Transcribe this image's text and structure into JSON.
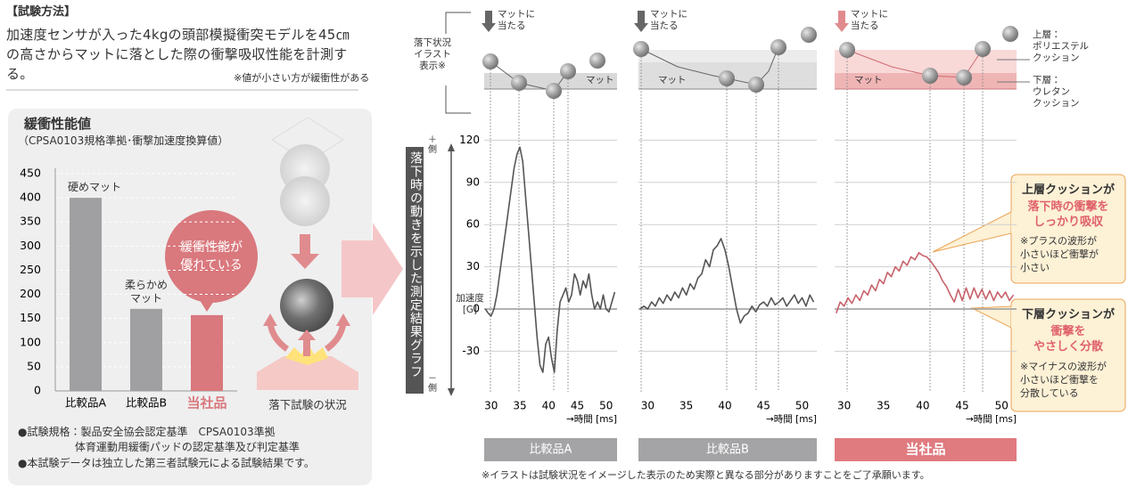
{
  "method": {
    "title": "【試験方法】",
    "text": "加速度センサが入った4kgの頭部模擬衝突モデルを45㎝の高さからマットに落とした際の衝撃吸収性能を計測する。",
    "note": "※値が小さい方が緩衝性がある"
  },
  "panel": {
    "title": "緩衝性能値",
    "subtitle": "（CPSA0103規格準拠･衝撃加速度換算値）",
    "bubble": "緩衝性能が\n優れている",
    "illustration_caption": "落下試験の状況",
    "notes": [
      "●試験規格：製品安全協会認定基準　CPSA0103準拠\n　　　　　 体育運動用緩衝パッドの認定基準及び判定基準",
      "●本試験データは独立した第三者試験元による試験結果です。"
    ]
  },
  "graph_side_label": "落下時の動きを示した測定結果グラフ",
  "plus_label": "＋\n側",
  "minus_label": "－\n側",
  "illustration": {
    "label": "落下状況\nイラスト\n表示※",
    "hit_labels": [
      "マットに\n当たる",
      "マットに\n当たる",
      "マットに\n当たる"
    ],
    "mat_labels": [
      "マット",
      "マット",
      "マット"
    ],
    "upper": "上層：\nポリエステル\nクッション",
    "lower": "下層：\nウレタン\nクッション"
  },
  "y_axis_label": "加速度\n[G]",
  "x_axis_label": "→時間 [ms]",
  "callouts": [
    {
      "head": "上層クッションが",
      "emphasis": "落下時の衝撃を\nしっかり吸収",
      "note": "※プラスの波形が\n小さいほど衝撃が\n小さい"
    },
    {
      "head": "下層クッションが",
      "emphasis": "衝撃を\nやさしく分散",
      "note": "※マイナスの波形が\n小さいほど衝撃を\n分散している"
    }
  ],
  "footnote": "※イラストは試験状況をイメージした表示のため実際と異なる部分がありますことをご了承願います。",
  "chart_data": [
    {
      "type": "bar",
      "categories": [
        "比較品A",
        "比較品B",
        "当社品"
      ],
      "values": [
        400,
        170,
        157
      ],
      "colors": [
        "#a09fa2",
        "#a09fa2",
        "#d9787d"
      ],
      "bar_labels": [
        "硬めマット",
        "柔らかめ\nマット",
        null
      ],
      "ylim": [
        0,
        450
      ],
      "yticks": [
        0,
        50,
        100,
        150,
        200,
        250,
        300,
        350,
        400,
        450
      ],
      "grid": true
    },
    {
      "type": "line",
      "label": "比較品A",
      "color": "#555555",
      "label_color": "#a4a4a6",
      "x": [
        29,
        29.5,
        30,
        30.5,
        31,
        31.5,
        32,
        32.5,
        33,
        33.5,
        34,
        34.5,
        35,
        35.5,
        36,
        36.5,
        37,
        37.5,
        38,
        38.5,
        39,
        39.5,
        40,
        40.5,
        41,
        41.5,
        42,
        42.5,
        43,
        43.5,
        44,
        44.5,
        45,
        45.5,
        46,
        46.5,
        47,
        47.5,
        48,
        48.5,
        49,
        49.5,
        50,
        50.5,
        51,
        51.5
      ],
      "values": [
        0,
        -3,
        -5,
        0,
        10,
        25,
        40,
        55,
        70,
        85,
        100,
        110,
        115,
        105,
        80,
        55,
        30,
        5,
        -20,
        -40,
        -45,
        -25,
        -20,
        -35,
        -45,
        -15,
        5,
        10,
        15,
        5,
        10,
        25,
        20,
        10,
        20,
        15,
        25,
        10,
        0,
        5,
        0,
        10,
        0,
        -2,
        5,
        12
      ],
      "xlim": [
        28.8,
        51.9
      ],
      "xticks": [
        30,
        35,
        40,
        45,
        50
      ],
      "ylim": [
        -60,
        130
      ],
      "yticks": [
        -30,
        0,
        30,
        60,
        90,
        120
      ],
      "grid": true
    },
    {
      "type": "line",
      "label": "比較品B",
      "color": "#555555",
      "label_color": "#a4a4a6",
      "x": [
        29,
        29.5,
        30,
        30.5,
        31,
        31.5,
        32,
        32.5,
        33,
        33.5,
        34,
        34.5,
        35,
        35.5,
        36,
        36.5,
        37,
        37.5,
        38,
        38.5,
        39,
        39.5,
        40,
        40.5,
        41,
        41.5,
        42,
        42.5,
        43,
        43.5,
        44,
        44.5,
        45,
        45.5,
        46,
        46.5,
        47,
        47.5,
        48,
        48.5,
        49,
        49.5,
        50,
        50.5,
        51,
        51.5
      ],
      "values": [
        0,
        2,
        0,
        5,
        2,
        8,
        4,
        10,
        6,
        12,
        8,
        15,
        10,
        18,
        14,
        22,
        25,
        35,
        30,
        42,
        45,
        50,
        42,
        30,
        15,
        0,
        -10,
        -5,
        -3,
        2,
        -2,
        3,
        5,
        2,
        8,
        3,
        5,
        8,
        2,
        6,
        10,
        4,
        8,
        2,
        10,
        5
      ],
      "xlim": [
        28.8,
        51.9
      ],
      "xticks": [
        30,
        35,
        40,
        45,
        50
      ],
      "ylim": [
        -60,
        130
      ],
      "yticks": [
        -30,
        0,
        30,
        60,
        90,
        120
      ],
      "grid": true
    },
    {
      "type": "line",
      "label": "当社品",
      "color": "#c8626b",
      "label_color": "#e07b80",
      "x": [
        29,
        29.5,
        30,
        30.5,
        31,
        31.5,
        32,
        32.5,
        33,
        33.5,
        34,
        34.5,
        35,
        35.5,
        36,
        36.5,
        37,
        37.5,
        38,
        38.5,
        39,
        39.5,
        40,
        40.5,
        41,
        41.5,
        42,
        42.5,
        43,
        43.5,
        44,
        44.5,
        45,
        45.5,
        46,
        46.5,
        47,
        47.5,
        48,
        48.5,
        49,
        49.5,
        50,
        50.5,
        51,
        51.5
      ],
      "values": [
        -3,
        5,
        2,
        8,
        4,
        10,
        6,
        13,
        10,
        17,
        13,
        21,
        18,
        26,
        23,
        30,
        27,
        34,
        31,
        37,
        35,
        40,
        38,
        37,
        34,
        30,
        26,
        20,
        16,
        10,
        5,
        14,
        6,
        15,
        7,
        15,
        8,
        14,
        7,
        13,
        6,
        12,
        8,
        12,
        6,
        10
      ],
      "xlim": [
        28.8,
        51.9
      ],
      "xticks": [
        30,
        35,
        40,
        45,
        50
      ],
      "ylim": [
        -60,
        130
      ],
      "yticks": [
        -30,
        0,
        30,
        60,
        90,
        120
      ],
      "grid": true
    }
  ]
}
